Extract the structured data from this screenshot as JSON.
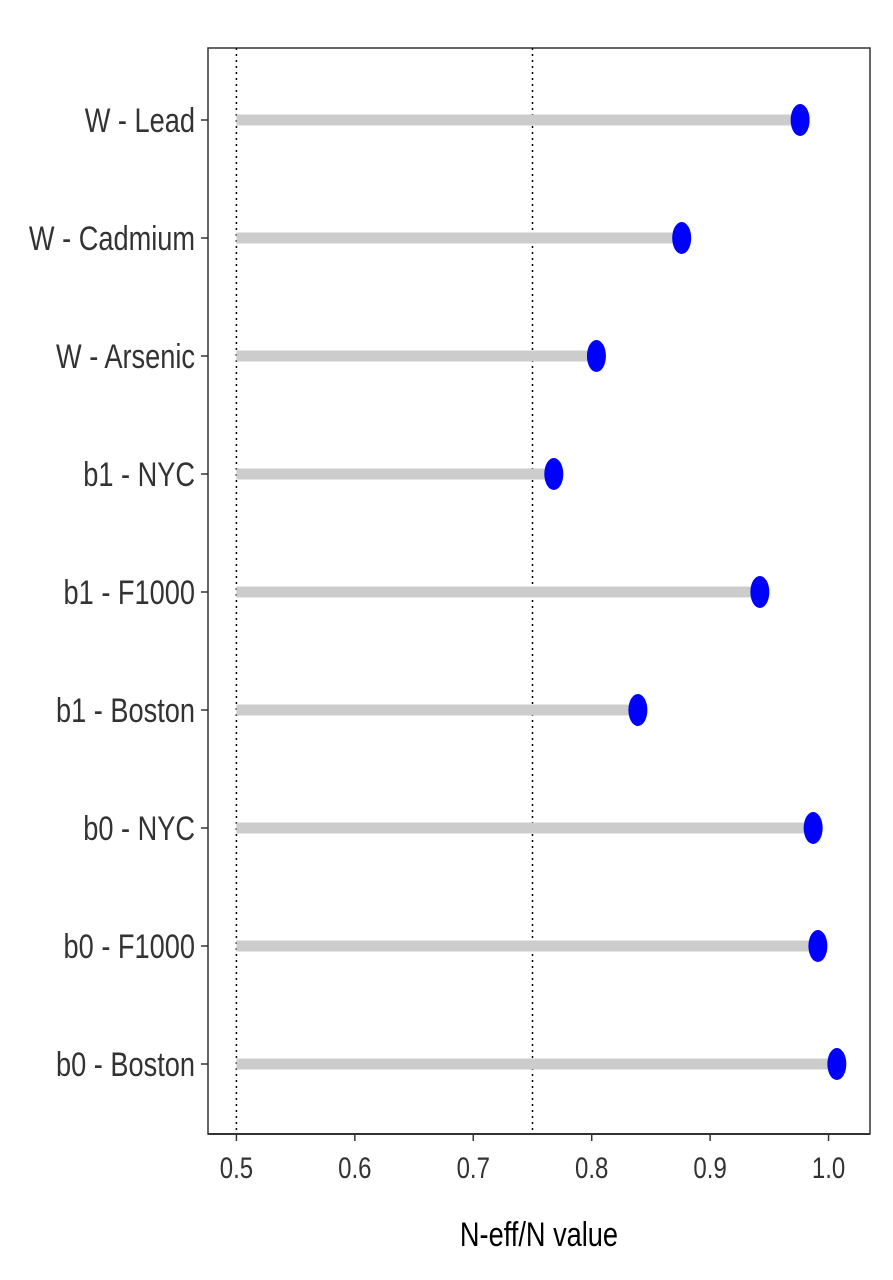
{
  "chart_data": {
    "type": "lollipop",
    "xlabel": "N-eff/N value",
    "ylabel": "",
    "xlim": [
      0.476,
      1.035
    ],
    "x_ticks": [
      "0.5",
      "0.6",
      "0.7",
      "0.8",
      "0.9",
      "1.0"
    ],
    "x_tick_values": [
      0.5,
      0.6,
      0.7,
      0.8,
      0.9,
      1.0
    ],
    "reference_lines": [
      0.5,
      0.75
    ],
    "categories": [
      "W - Lead",
      "W - Cadmium",
      "W - Arsenic",
      "b1 - NYC",
      "b1 - F1000",
      "b1 - Boston",
      "b0 - NYC",
      "b0 - F1000",
      "b0 - Boston"
    ],
    "values": [
      0.976,
      0.876,
      0.804,
      0.768,
      0.942,
      0.839,
      0.987,
      0.991,
      1.007
    ],
    "grid": false,
    "legend": "none",
    "colors": {
      "point": "#0000ff",
      "stem": "#cccccc",
      "reference_line": "#000000"
    }
  }
}
